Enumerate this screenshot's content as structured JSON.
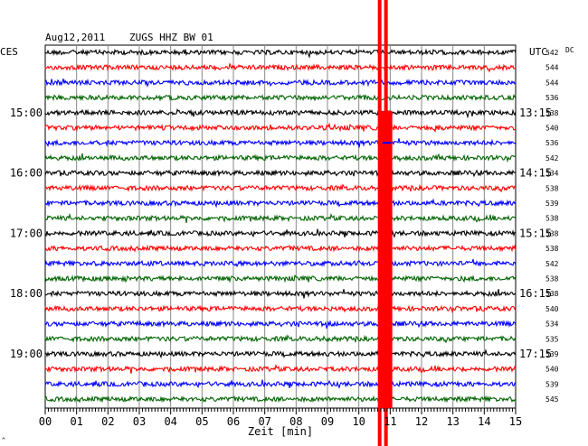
{
  "header": {
    "date": "Aug12,2011",
    "station": "ZUGS HHZ BW 01",
    "left_zone": "CES",
    "right_zone": "UTC",
    "dc_label": "DC"
  },
  "chart_data": {
    "type": "line",
    "title": "Aug12,2011   ZUGS HHZ BW 01",
    "xlabel": "Zeit [min]",
    "xlim": [
      0,
      15
    ],
    "x_ticks": [
      "00",
      "01",
      "02",
      "03",
      "04",
      "05",
      "06",
      "07",
      "08",
      "09",
      "10",
      "11",
      "12",
      "13",
      "14",
      "15"
    ],
    "trace_colors": [
      "#000000",
      "#ff0000",
      "#0000ff",
      "#006400"
    ],
    "traces_count": 24,
    "left_time_labels": [
      {
        "row": 4,
        "label": "15:00"
      },
      {
        "row": 8,
        "label": "16:00"
      },
      {
        "row": 12,
        "label": "17:00"
      },
      {
        "row": 16,
        "label": "18:00"
      },
      {
        "row": 20,
        "label": "19:00"
      }
    ],
    "right_time_labels": [
      {
        "row": 4,
        "label": "13:15"
      },
      {
        "row": 8,
        "label": "14:15"
      },
      {
        "row": 12,
        "label": "15:15"
      },
      {
        "row": 16,
        "label": "16:15"
      },
      {
        "row": 20,
        "label": "17:15"
      }
    ],
    "dc_values": [
      "542",
      "544",
      "544",
      "536",
      "538",
      "540",
      "536",
      "542",
      "534",
      "538",
      "539",
      "538",
      "538",
      "538",
      "542",
      "538",
      "538",
      "540",
      "534",
      "535",
      "539",
      "540",
      "539",
      "545"
    ],
    "event": {
      "minute": 10.75,
      "color": "#ff0000"
    },
    "grid": true
  },
  "footer": {
    "mark": "^"
  }
}
